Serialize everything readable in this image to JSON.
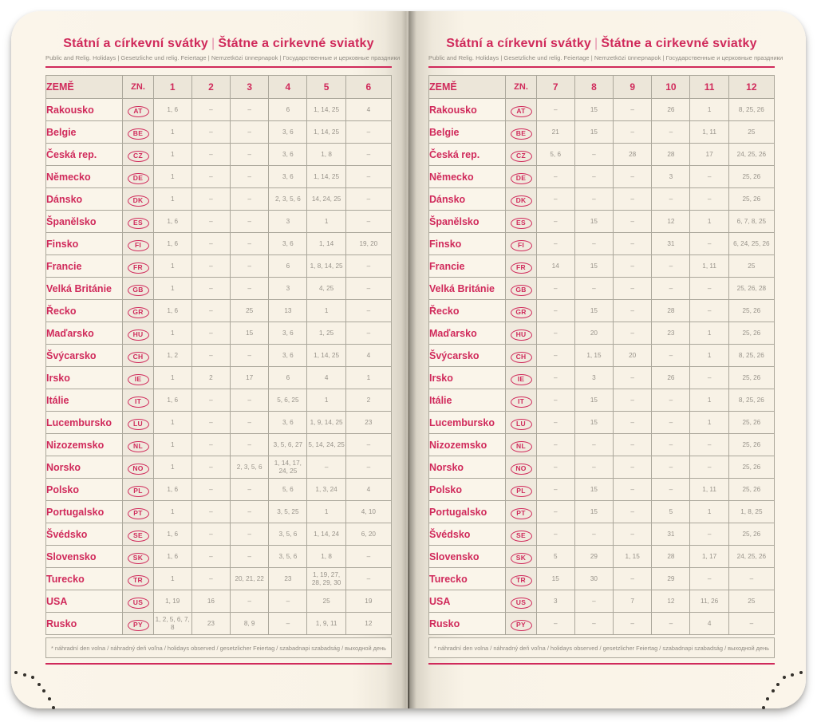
{
  "title": {
    "cs": "Státní a církevní svátky",
    "sk": "Štátne a cirkevné sviatky",
    "separator": "|"
  },
  "subtitle": "Public and Relig. Holidays | Gesetzliche und relig. Feiertage | Nemzetközi ünnepnapok | Государственные и церковные праздники",
  "footnote": "* náhradní den volna / náhradný deň voľna / holidays observed / gesetzlicher Feiertag / szabadnapi szabadság / выходной день",
  "table": {
    "country_header": "ZEMĚ",
    "code_header": "ZN.",
    "left_months": [
      "1",
      "2",
      "3",
      "4",
      "5",
      "6"
    ],
    "right_months": [
      "7",
      "8",
      "9",
      "10",
      "11",
      "12"
    ],
    "empty_mark": "–"
  },
  "colors": {
    "accent": "#d02a5b",
    "page": "#f9f3e7",
    "grid": "#aba79b",
    "value_text": "#98938a"
  },
  "countries": [
    {
      "name": "Rakousko",
      "code": "AT",
      "left": [
        "1, 6",
        "–",
        "–",
        "6",
        "1, 14, 25",
        "4"
      ],
      "right": [
        "–",
        "15",
        "–",
        "26",
        "1",
        "8, 25, 26"
      ]
    },
    {
      "name": "Belgie",
      "code": "BE",
      "left": [
        "1",
        "–",
        "–",
        "3, 6",
        "1, 14, 25",
        "–"
      ],
      "right": [
        "21",
        "15",
        "–",
        "–",
        "1, 11",
        "25"
      ]
    },
    {
      "name": "Česká rep.",
      "code": "CZ",
      "left": [
        "1",
        "–",
        "–",
        "3, 6",
        "1, 8",
        "–"
      ],
      "right": [
        "5, 6",
        "–",
        "28",
        "28",
        "17",
        "24, 25, 26"
      ]
    },
    {
      "name": "Německo",
      "code": "DE",
      "left": [
        "1",
        "–",
        "–",
        "3, 6",
        "1, 14, 25",
        "–"
      ],
      "right": [
        "–",
        "–",
        "–",
        "3",
        "–",
        "25, 26"
      ]
    },
    {
      "name": "Dánsko",
      "code": "DK",
      "left": [
        "1",
        "–",
        "–",
        "2, 3, 5, 6",
        "14, 24, 25",
        "–"
      ],
      "right": [
        "–",
        "–",
        "–",
        "–",
        "–",
        "25, 26"
      ]
    },
    {
      "name": "Španělsko",
      "code": "ES",
      "left": [
        "1, 6",
        "–",
        "–",
        "3",
        "1",
        "–"
      ],
      "right": [
        "–",
        "15",
        "–",
        "12",
        "1",
        "6, 7, 8, 25"
      ]
    },
    {
      "name": "Finsko",
      "code": "FI",
      "left": [
        "1, 6",
        "–",
        "–",
        "3, 6",
        "1, 14",
        "19, 20"
      ],
      "right": [
        "–",
        "–",
        "–",
        "31",
        "–",
        "6, 24, 25, 26"
      ]
    },
    {
      "name": "Francie",
      "code": "FR",
      "left": [
        "1",
        "–",
        "–",
        "6",
        "1, 8, 14, 25",
        "–"
      ],
      "right": [
        "14",
        "15",
        "–",
        "–",
        "1, 11",
        "25"
      ]
    },
    {
      "name": "Velká Británie",
      "code": "GB",
      "left": [
        "1",
        "–",
        "–",
        "3",
        "4, 25",
        "–"
      ],
      "right": [
        "–",
        "–",
        "–",
        "–",
        "–",
        "25, 26, 28"
      ]
    },
    {
      "name": "Řecko",
      "code": "GR",
      "left": [
        "1, 6",
        "–",
        "25",
        "13",
        "1",
        "–"
      ],
      "right": [
        "–",
        "15",
        "–",
        "28",
        "–",
        "25, 26"
      ]
    },
    {
      "name": "Maďarsko",
      "code": "HU",
      "left": [
        "1",
        "–",
        "15",
        "3, 6",
        "1, 25",
        "–"
      ],
      "right": [
        "–",
        "20",
        "–",
        "23",
        "1",
        "25, 26"
      ]
    },
    {
      "name": "Švýcarsko",
      "code": "CH",
      "left": [
        "1, 2",
        "–",
        "–",
        "3, 6",
        "1, 14, 25",
        "4"
      ],
      "right": [
        "–",
        "1, 15",
        "20",
        "–",
        "1",
        "8, 25, 26"
      ]
    },
    {
      "name": "Irsko",
      "code": "IE",
      "left": [
        "1",
        "2",
        "17",
        "6",
        "4",
        "1"
      ],
      "right": [
        "–",
        "3",
        "–",
        "26",
        "–",
        "25, 26"
      ]
    },
    {
      "name": "Itálie",
      "code": "IT",
      "left": [
        "1, 6",
        "–",
        "–",
        "5, 6, 25",
        "1",
        "2"
      ],
      "right": [
        "–",
        "15",
        "–",
        "–",
        "1",
        "8, 25, 26"
      ]
    },
    {
      "name": "Lucembursko",
      "code": "LU",
      "left": [
        "1",
        "–",
        "–",
        "3, 6",
        "1, 9, 14, 25",
        "23"
      ],
      "right": [
        "–",
        "15",
        "–",
        "–",
        "1",
        "25, 26"
      ]
    },
    {
      "name": "Nizozemsko",
      "code": "NL",
      "left": [
        "1",
        "–",
        "–",
        "3, 5, 6, 27",
        "5, 14, 24, 25",
        "–"
      ],
      "right": [
        "–",
        "–",
        "–",
        "–",
        "–",
        "25, 26"
      ]
    },
    {
      "name": "Norsko",
      "code": "NO",
      "left": [
        "1",
        "–",
        "2, 3, 5, 6",
        "1, 14, 17, 24, 25",
        "–",
        "–"
      ],
      "right": [
        "–",
        "–",
        "–",
        "–",
        "–",
        "25, 26"
      ]
    },
    {
      "name": "Polsko",
      "code": "PL",
      "left": [
        "1, 6",
        "–",
        "–",
        "5, 6",
        "1, 3, 24",
        "4"
      ],
      "right": [
        "–",
        "15",
        "–",
        "–",
        "1, 11",
        "25, 26"
      ]
    },
    {
      "name": "Portugalsko",
      "code": "PT",
      "left": [
        "1",
        "–",
        "–",
        "3, 5, 25",
        "1",
        "4, 10"
      ],
      "right": [
        "–",
        "15",
        "–",
        "5",
        "1",
        "1, 8, 25"
      ]
    },
    {
      "name": "Švédsko",
      "code": "SE",
      "left": [
        "1, 6",
        "–",
        "–",
        "3, 5, 6",
        "1, 14, 24",
        "6, 20"
      ],
      "right": [
        "–",
        "–",
        "–",
        "31",
        "–",
        "25, 26"
      ]
    },
    {
      "name": "Slovensko",
      "code": "SK",
      "left": [
        "1, 6",
        "–",
        "–",
        "3, 5, 6",
        "1, 8",
        "–"
      ],
      "right": [
        "5",
        "29",
        "1, 15",
        "28",
        "1, 17",
        "24, 25, 26"
      ]
    },
    {
      "name": "Turecko",
      "code": "TR",
      "left": [
        "1",
        "–",
        "20, 21, 22",
        "23",
        "1, 19, 27, 28, 29, 30",
        "–"
      ],
      "right": [
        "15",
        "30",
        "–",
        "29",
        "–",
        "–"
      ]
    },
    {
      "name": "USA",
      "code": "US",
      "left": [
        "1, 19",
        "16",
        "–",
        "–",
        "25",
        "19"
      ],
      "right": [
        "3",
        "–",
        "7",
        "12",
        "11, 26",
        "25"
      ]
    },
    {
      "name": "Rusko",
      "code": "PY",
      "left": [
        "1, 2, 5, 6, 7, 8",
        "23",
        "8, 9",
        "–",
        "1, 9, 11",
        "12"
      ],
      "right": [
        "–",
        "–",
        "–",
        "–",
        "4",
        "–"
      ]
    }
  ]
}
